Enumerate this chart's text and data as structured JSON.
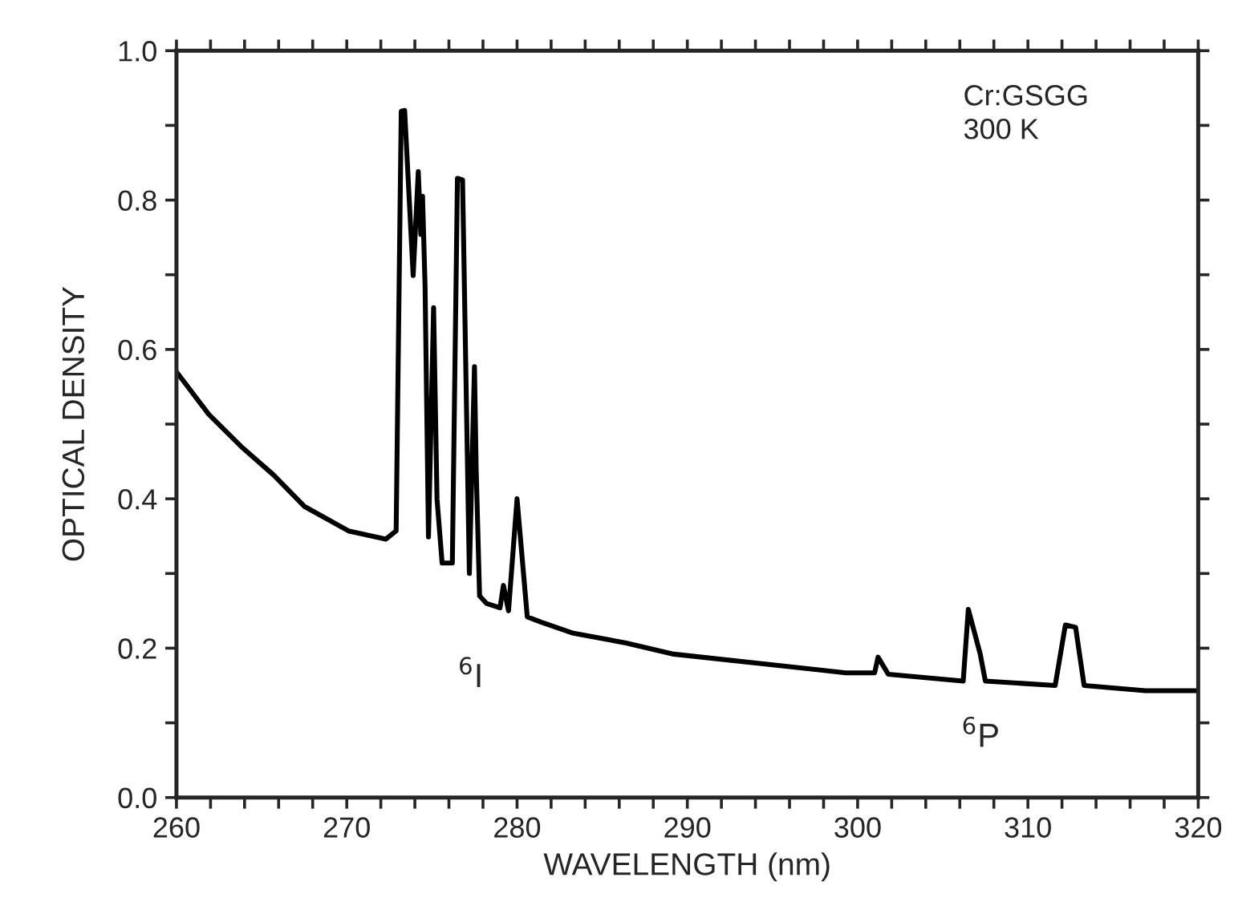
{
  "chart_data": {
    "type": "line",
    "xlabel": "WAVELENGTH (nm)",
    "ylabel": "OPTICAL DENSITY",
    "annotations": [
      "Cr:GSGG",
      "300 K",
      "$^{6}$I",
      "$^{6}$P"
    ],
    "x": [
      260.0,
      261.9,
      263.8,
      265.7,
      267.5,
      270.1,
      272.3,
      272.9,
      273.2,
      273.4,
      273.9,
      274.2,
      274.35,
      274.45,
      274.6,
      274.8,
      275.1,
      275.3,
      275.6,
      276.2,
      276.5,
      276.8,
      277.2,
      277.5,
      277.6,
      277.8,
      278.2,
      279.0,
      279.2,
      279.5,
      280.0,
      280.6,
      281.4,
      283.3,
      286.4,
      289.2,
      294.9,
      299.3,
      301.0,
      301.2,
      301.8,
      306.2,
      306.5,
      307.2,
      307.5,
      311.6,
      312.2,
      312.8,
      313.3,
      316.9,
      319.9
    ],
    "series": [
      {
        "color": "#000000",
        "values": [
          0.57,
          0.513,
          0.47,
          0.432,
          0.39,
          0.357,
          0.346,
          0.357,
          0.919,
          0.92,
          0.699,
          0.838,
          0.754,
          0.805,
          0.684,
          0.349,
          0.656,
          0.4,
          0.314,
          0.314,
          0.829,
          0.827,
          0.3,
          0.577,
          0.44,
          0.27,
          0.26,
          0.254,
          0.284,
          0.25,
          0.4,
          0.242,
          0.235,
          0.22,
          0.207,
          0.192,
          0.178,
          0.167,
          0.167,
          0.188,
          0.165,
          0.156,
          0.252,
          0.192,
          0.156,
          0.15,
          0.231,
          0.228,
          0.15,
          0.143,
          0.143
        ]
      }
    ],
    "xlim": [
      260,
      320
    ],
    "ylim": [
      0.0,
      1.0
    ],
    "xticks": [
      260,
      {
        "value": 262,
        "label": null
      },
      {
        "value": 264,
        "label": null
      },
      {
        "value": 266,
        "label": null
      },
      {
        "value": 268,
        "label": null
      },
      270,
      {
        "value": 272,
        "label": null
      },
      {
        "value": 274,
        "label": null
      },
      {
        "value": 276,
        "label": null
      },
      {
        "value": 278,
        "label": null
      },
      280,
      {
        "value": 282,
        "label": null
      },
      {
        "value": 284,
        "label": null
      },
      {
        "value": 286,
        "label": null
      },
      {
        "value": 288,
        "label": null
      },
      290,
      {
        "value": 292,
        "label": null
      },
      {
        "value": 294,
        "label": null
      },
      {
        "value": 296,
        "label": null
      },
      {
        "value": 298,
        "label": null
      },
      300,
      {
        "value": 302,
        "label": null
      },
      {
        "value": 304,
        "label": null
      },
      {
        "value": 306,
        "label": null
      },
      {
        "value": 308,
        "label": null
      },
      310,
      {
        "value": 312,
        "label": null
      },
      {
        "value": 314,
        "label": null
      },
      {
        "value": 316,
        "label": null
      },
      {
        "value": 318,
        "label": null
      },
      320
    ],
    "yticks": [
      {
        "value": 0.0,
        "label": "0.0"
      },
      {
        "value": 0.1,
        "label": null
      },
      {
        "value": 0.2,
        "label": "0.2"
      },
      {
        "value": 0.3,
        "label": null
      },
      {
        "value": 0.4,
        "label": "0.4"
      },
      {
        "value": 0.5,
        "label": null
      },
      {
        "value": 0.6,
        "label": "0.6"
      },
      {
        "value": 0.7,
        "label": null
      },
      {
        "value": 0.8,
        "label": "0.8"
      },
      {
        "value": 0.9,
        "label": null
      },
      {
        "value": 1.0,
        "label": "1.0"
      }
    ],
    "grid": false,
    "legend": false,
    "marker": "none",
    "line_style": "solid"
  }
}
